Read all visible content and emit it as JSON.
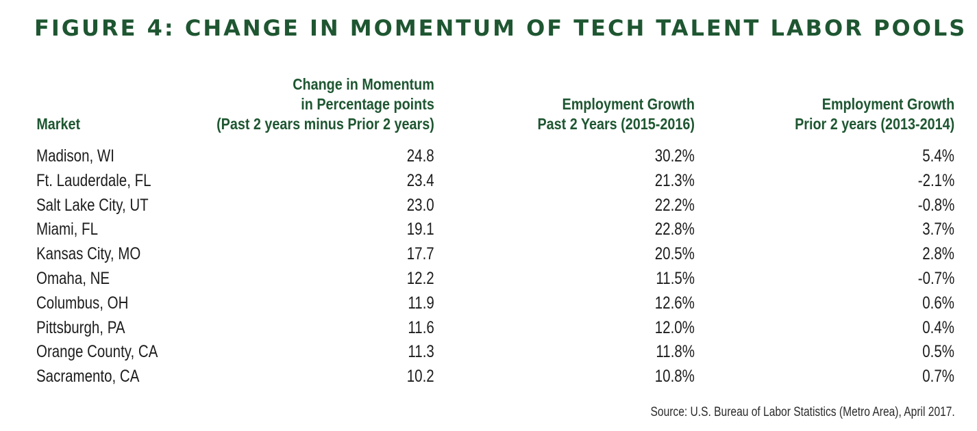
{
  "chart_data": {
    "type": "table",
    "title": "FIGURE 4: CHANGE IN MOMENTUM OF TECH TALENT LABOR POOLS",
    "columns": [
      {
        "lines": [
          "Market"
        ]
      },
      {
        "lines": [
          "Change in Momentum",
          "in Percentage points",
          "(Past 2 years minus Prior 2 years)"
        ]
      },
      {
        "lines": [
          "Employment Growth",
          "Past 2 Years (2015-2016)"
        ]
      },
      {
        "lines": [
          "Employment Growth",
          "Prior 2 years (2013-2014)"
        ]
      }
    ],
    "rows": [
      {
        "market": "Madison, WI",
        "momentum": "24.8",
        "growth_past": "30.2%",
        "growth_prior": "5.4%"
      },
      {
        "market": "Ft. Lauderdale, FL",
        "momentum": "23.4",
        "growth_past": "21.3%",
        "growth_prior": "-2.1%"
      },
      {
        "market": "Salt Lake City, UT",
        "momentum": "23.0",
        "growth_past": "22.2%",
        "growth_prior": "-0.8%"
      },
      {
        "market": "Miami, FL",
        "momentum": "19.1",
        "growth_past": "22.8%",
        "growth_prior": "3.7%"
      },
      {
        "market": "Kansas City, MO",
        "momentum": "17.7",
        "growth_past": "20.5%",
        "growth_prior": "2.8%"
      },
      {
        "market": "Omaha, NE",
        "momentum": "12.2",
        "growth_past": "11.5%",
        "growth_prior": "-0.7%"
      },
      {
        "market": "Columbus, OH",
        "momentum": "11.9",
        "growth_past": "12.6%",
        "growth_prior": "0.6%"
      },
      {
        "market": "Pittsburgh, PA",
        "momentum": "11.6",
        "growth_past": "12.0%",
        "growth_prior": "0.4%"
      },
      {
        "market": "Orange County, CA",
        "momentum": "11.3",
        "growth_past": "11.8%",
        "growth_prior": "0.5%"
      },
      {
        "market": "Sacramento, CA",
        "momentum": "10.2",
        "growth_past": "10.8%",
        "growth_prior": "0.7%"
      }
    ],
    "source": "Source: U.S. Bureau of Labor Statistics (Metro Area), April 2017."
  },
  "colors": {
    "title": "#1e5631",
    "header": "#1e5631",
    "text": "#1c1c1c"
  }
}
